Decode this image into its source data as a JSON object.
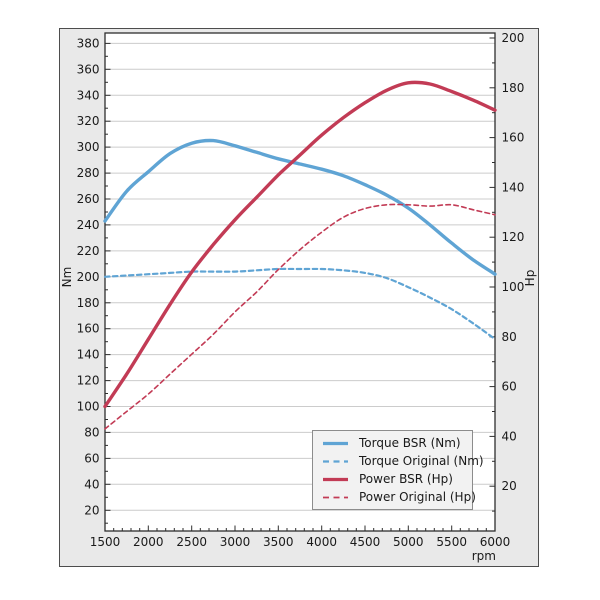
{
  "colors": {
    "torque_line": "#5fa4d4",
    "power_line": "#c23b55",
    "plot_background": "#ffffff",
    "frame_background": "#e9e9e9",
    "frame_border": "#4d4d4d",
    "grid_line": "#cccccc",
    "axis_line": "#2e2e2e",
    "tick_text": "#1a1a1a",
    "legend_background": "#f2f2f2",
    "legend_border": "#8c8c8c"
  },
  "chart_data": {
    "type": "line",
    "title": "",
    "xlabel": "rpm",
    "ylabel_left": "Nm",
    "ylabel_right": "Hp",
    "xlim": [
      1500,
      6000
    ],
    "ylim_left": [
      4,
      388
    ],
    "ylim_right": [
      2,
      202
    ],
    "xticks": [
      1500,
      2000,
      2500,
      3000,
      3500,
      4000,
      4500,
      5000,
      5500,
      6000
    ],
    "x_minor_step": 100,
    "yticks_left": [
      20,
      40,
      60,
      80,
      100,
      120,
      140,
      160,
      180,
      200,
      220,
      240,
      260,
      280,
      300,
      320,
      340,
      360,
      380
    ],
    "yticks_right": [
      20,
      40,
      60,
      80,
      100,
      120,
      140,
      160,
      180,
      200
    ],
    "y_minor_step": 10,
    "grid": "horizontal-from-left-axis",
    "legend_position": "lower-right",
    "x": [
      1500,
      1750,
      2000,
      2250,
      2500,
      2750,
      3000,
      3250,
      3500,
      3750,
      4000,
      4250,
      4500,
      4750,
      5000,
      5250,
      5500,
      5750,
      6000
    ],
    "series": [
      {
        "name": "Torque BSR (Nm)",
        "axis": "left",
        "line": "solid",
        "color": "#5fa4d4",
        "values": [
          243,
          266,
          281,
          295,
          303,
          305,
          301,
          296,
          291,
          287,
          283,
          278,
          271,
          263,
          253,
          240,
          226,
          213,
          202
        ]
      },
      {
        "name": "Torque Original (Nm)",
        "axis": "left",
        "line": "dashed",
        "color": "#5fa4d4",
        "values": [
          200,
          201,
          202,
          203,
          204,
          204,
          204,
          205,
          206,
          206,
          206,
          205,
          203,
          199,
          192,
          184,
          175,
          164,
          152
        ]
      },
      {
        "name": "Power BSR (Hp)",
        "axis": "right",
        "line": "solid",
        "color": "#c23b55",
        "values": [
          52,
          65,
          79,
          93,
          106,
          117,
          127,
          136,
          145,
          153,
          161,
          168,
          174,
          179,
          182,
          181.5,
          178.5,
          175,
          171
        ]
      },
      {
        "name": "Power Original (Hp)",
        "axis": "right",
        "line": "dashed",
        "color": "#c23b55",
        "values": [
          43,
          50,
          57,
          65,
          73,
          81,
          90,
          98,
          107,
          115,
          122,
          128,
          131.5,
          133,
          133,
          132.5,
          133,
          131,
          129
        ]
      }
    ]
  }
}
